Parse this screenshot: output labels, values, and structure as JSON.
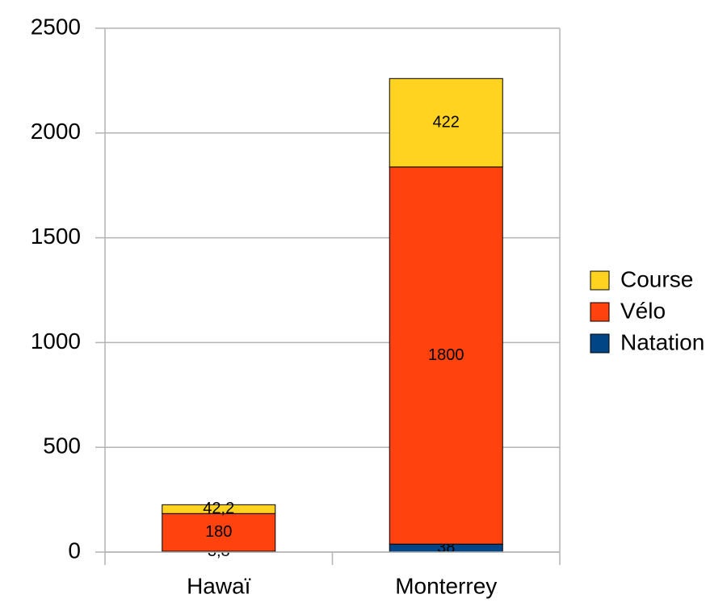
{
  "chart_data": {
    "type": "stacked-bar",
    "categories": [
      "Hawaï",
      "Monterrey"
    ],
    "series": [
      {
        "name": "Natation",
        "color": "#004586",
        "values": [
          3.8,
          38
        ],
        "value_labels": [
          "3,8",
          "38"
        ]
      },
      {
        "name": "Vélo",
        "color": "#ff420e",
        "values": [
          180,
          1800
        ],
        "value_labels": [
          "180",
          "1800"
        ]
      },
      {
        "name": "Course",
        "color": "#ffd320",
        "values": [
          42.2,
          422
        ],
        "value_labels": [
          "42,2",
          "422"
        ]
      }
    ],
    "ylim": [
      0,
      2500
    ],
    "yticks": [
      0,
      500,
      1000,
      1500,
      2000,
      2500
    ],
    "grid": true,
    "legend": "right"
  }
}
